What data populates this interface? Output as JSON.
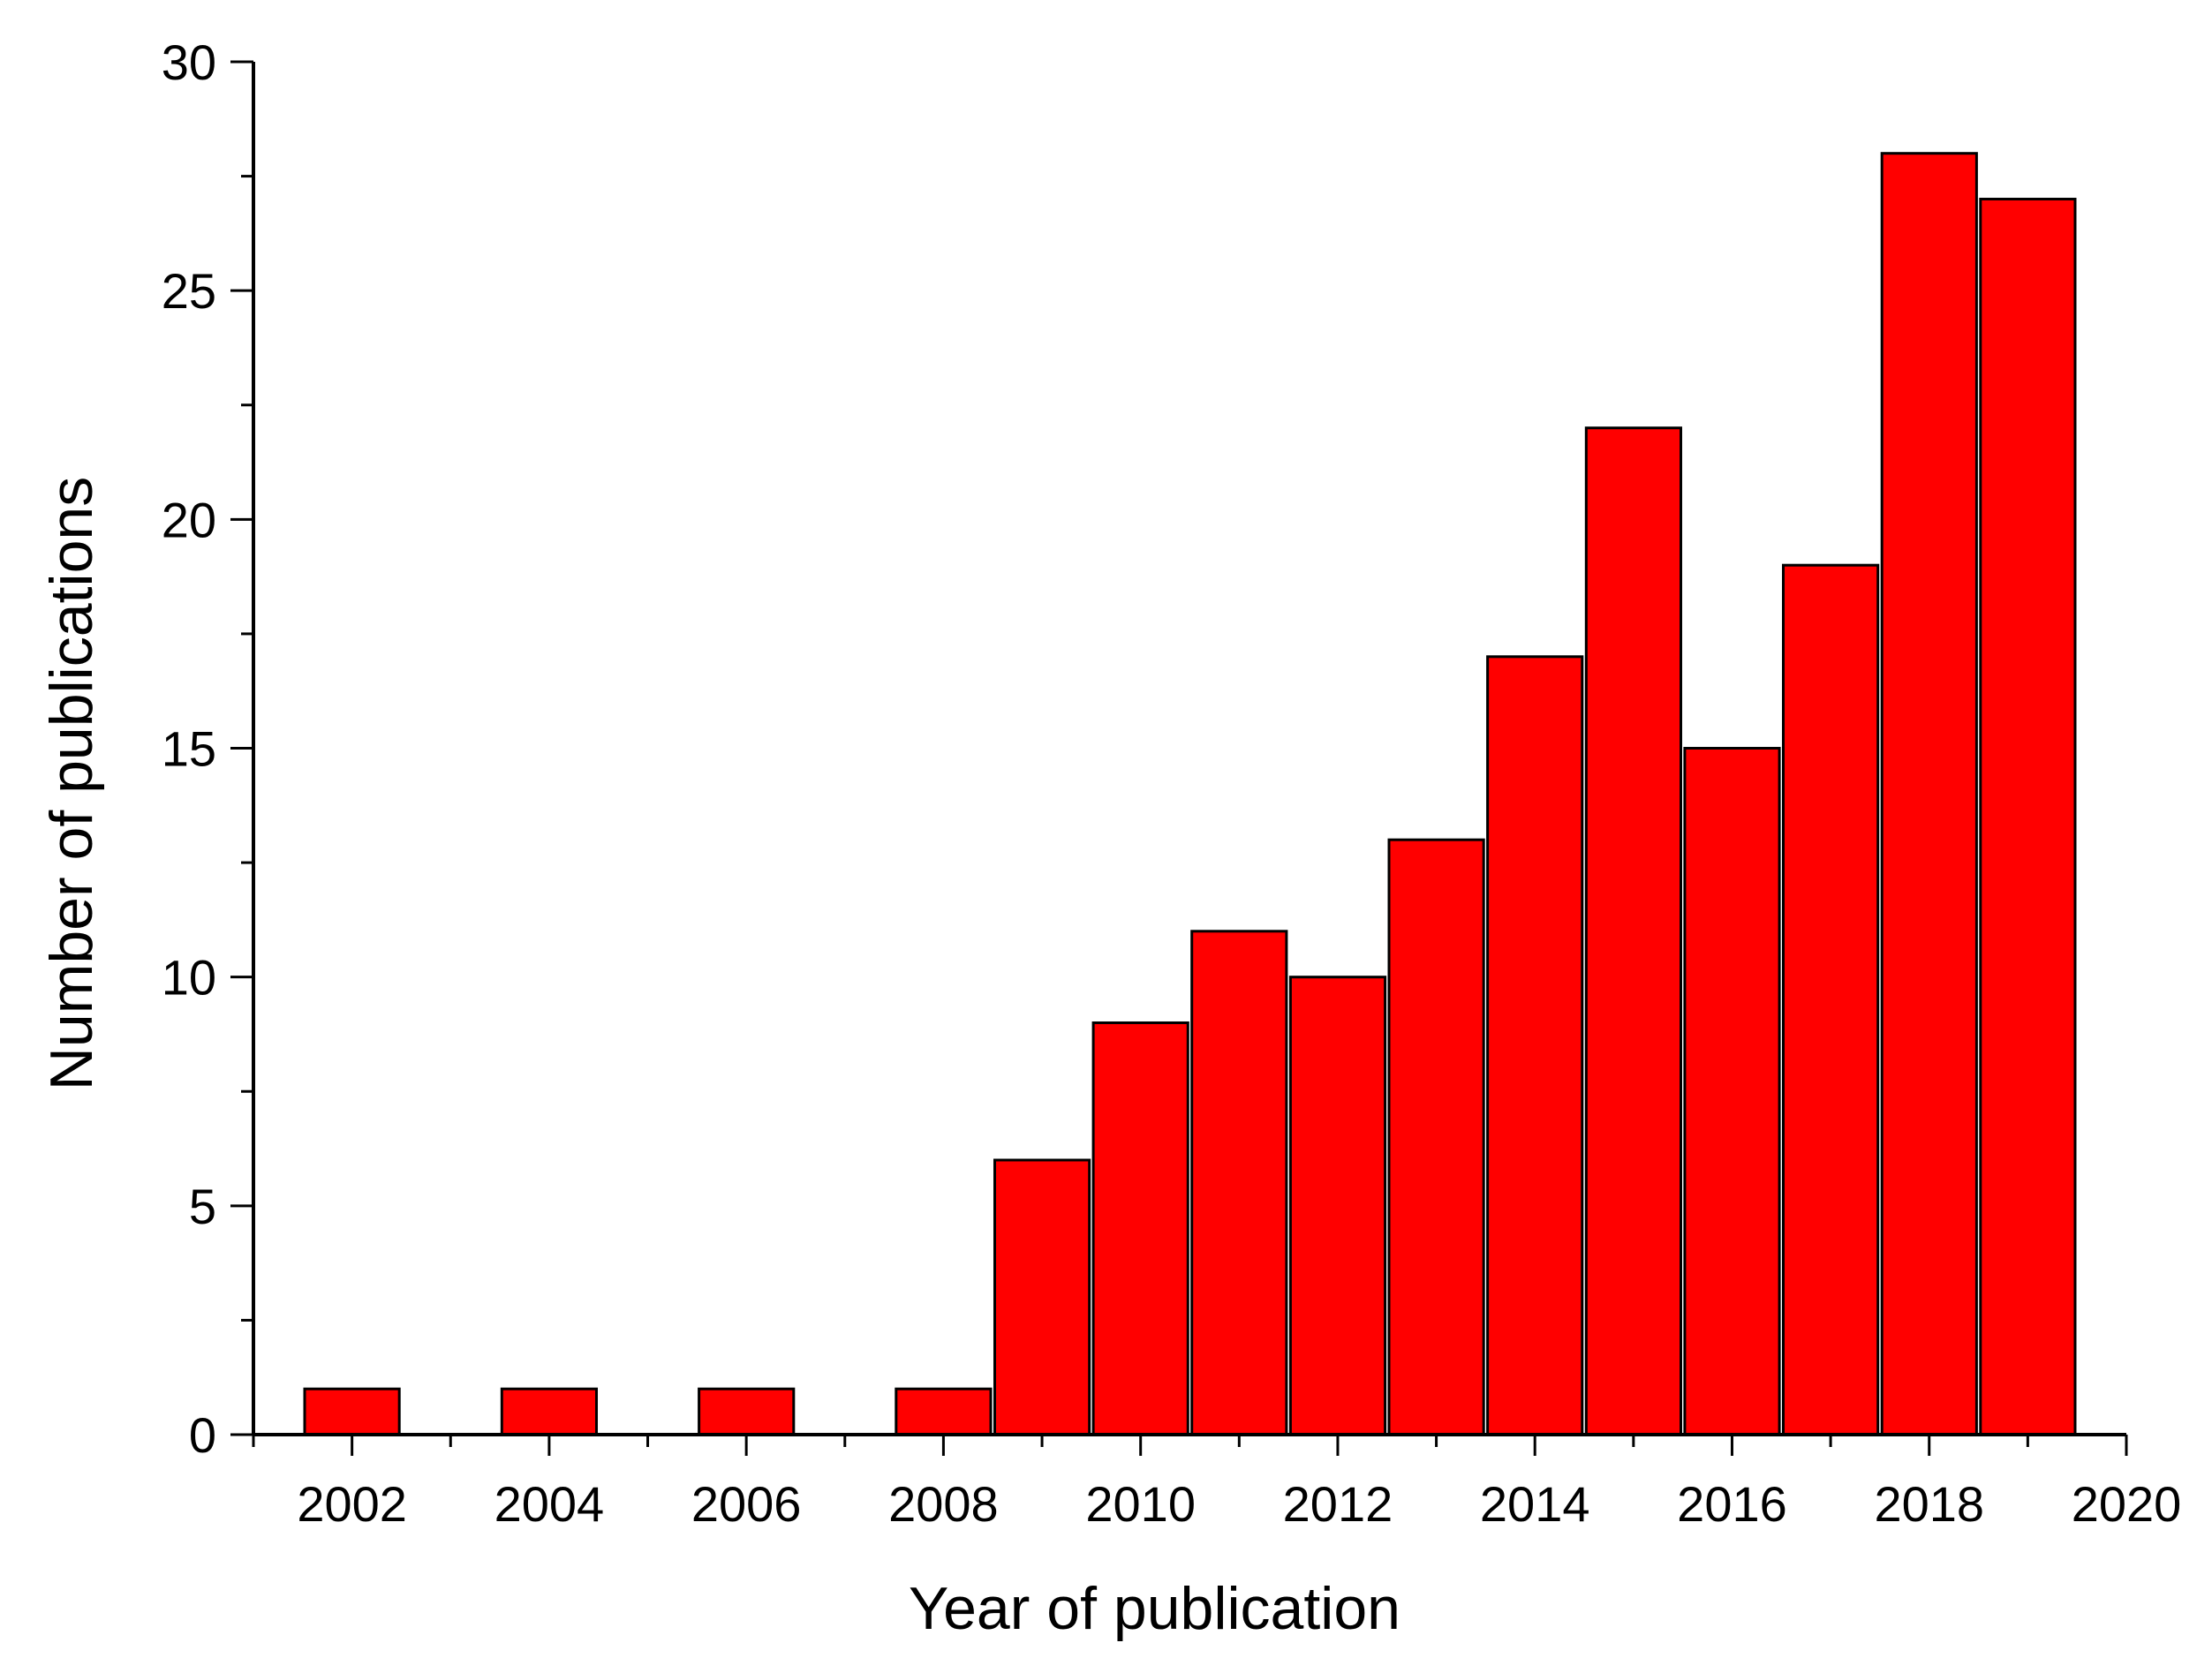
{
  "chart_data": {
    "type": "bar",
    "title": "",
    "xlabel": "Year of publication",
    "ylabel": "Number of publications",
    "xlim": [
      2001,
      2020
    ],
    "ylim": [
      0,
      30
    ],
    "x_ticks": [
      "2002",
      "2004",
      "2006",
      "2008",
      "2010",
      "2012",
      "2014",
      "2016",
      "2018",
      "2020"
    ],
    "y_ticks": [
      "0",
      "5",
      "10",
      "15",
      "20",
      "25",
      "30"
    ],
    "grid": false,
    "legend": "none",
    "bar_color": "#ff0000",
    "bar_edge_color": "#000000",
    "x": [
      2002,
      2004,
      2006,
      2008,
      2009,
      2010,
      2011,
      2012,
      2013,
      2014,
      2015,
      2016,
      2017,
      2018,
      2019
    ],
    "values": [
      1,
      1,
      1,
      1,
      6,
      9,
      11,
      10,
      13,
      17,
      22,
      15,
      19,
      28,
      27
    ]
  }
}
